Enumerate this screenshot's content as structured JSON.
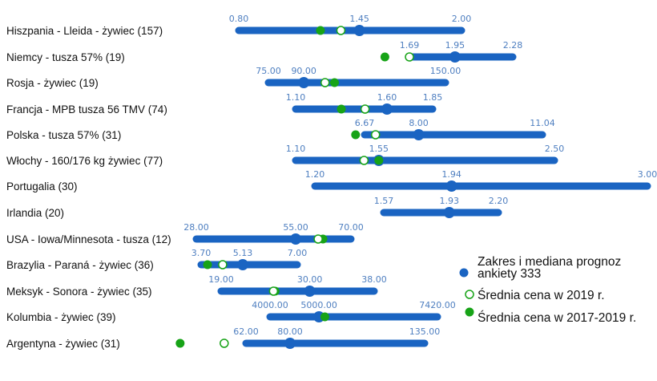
{
  "chart_data": {
    "type": "range-dot",
    "grid": false,
    "legend_position": "right",
    "colors": {
      "range": "#1a64c2",
      "mean_2019": "#17a317",
      "mean_2017_2019": "#17a317"
    },
    "legend": [
      {
        "key": "range",
        "label": "Zakres i mediana prognoz ankiety 333",
        "lines": [
          "Zakres i mediana prognoz",
          "ankiety 333"
        ]
      },
      {
        "key": "mean_2019",
        "label": "Średnia cena w 2019 r."
      },
      {
        "key": "mean_2017_2019",
        "label": "Średnia cena w 2017-2019 r."
      }
    ],
    "rows": [
      {
        "label": "Hiszpania - Lleida - żywiec (157)",
        "min": 0.8,
        "median": 1.45,
        "max": 2.0,
        "min_label": "0.80",
        "median_label": "1.45",
        "max_label": "2.00",
        "mean_2019": 1.35,
        "mean_2017_2019": 1.24
      },
      {
        "label": "Niemcy - tusza 57% (19)",
        "min": 1.69,
        "median": 1.95,
        "max": 2.28,
        "min_label": "1.69",
        "median_label": "1.95",
        "max_label": "2.28",
        "mean_2019": 1.69,
        "mean_2017_2019": 1.55
      },
      {
        "label": "Rosja -  żywiec (19)",
        "min": 75.0,
        "median": 90.0,
        "max": 150.0,
        "min_label": "75.00",
        "median_label": "90.00",
        "max_label": "150.00",
        "mean_2019": 99.0,
        "mean_2017_2019": 103.0
      },
      {
        "label": "Francja - MPB tusza 56 TMV (74)",
        "min": 1.1,
        "median": 1.6,
        "max": 1.85,
        "min_label": "1.10",
        "median_label": "1.60",
        "max_label": "1.85",
        "mean_2019": 1.48,
        "mean_2017_2019": 1.35
      },
      {
        "label": "Polska - tusza 57% (31)",
        "min": 6.67,
        "median": 8.0,
        "max": 11.04,
        "min_label": "6.67",
        "median_label": "8.00",
        "max_label": "11.04",
        "mean_2019": 6.94,
        "mean_2017_2019": 6.45
      },
      {
        "label": "Włochy - 160/176 kg żywiec (77)",
        "min": 1.1,
        "median": 1.55,
        "max": 2.5,
        "min_label": "1.10",
        "median_label": "1.55",
        "max_label": "2.50",
        "mean_2019": 1.47,
        "mean_2017_2019": 1.55
      },
      {
        "label": "Portugalia (30)",
        "min": 1.2,
        "median": 1.94,
        "max": 3.0,
        "min_label": "1.20",
        "median_label": "1.94",
        "max_label": "3.00",
        "mean_2019": null,
        "mean_2017_2019": null
      },
      {
        "label": "Irlandia (20)",
        "min": 1.57,
        "median": 1.93,
        "max": 2.2,
        "min_label": "1.57",
        "median_label": "1.93",
        "max_label": "2.20",
        "mean_2019": null,
        "mean_2017_2019": null
      },
      {
        "label": "USA - Iowa/Minnesota - tusza (12)",
        "min": 28.0,
        "median": 55.0,
        "max": 70.0,
        "min_label": "28.00",
        "median_label": "55.00",
        "max_label": "70.00",
        "mean_2019": 61.1,
        "mean_2017_2019": 62.4
      },
      {
        "label": "Brazylia - Paraná - żywiec (36)",
        "min": 3.7,
        "median": 5.13,
        "max": 7.0,
        "min_label": "3.70",
        "median_label": "5.13",
        "max_label": "7.00",
        "mean_2019": 4.44,
        "mean_2017_2019": 3.92
      },
      {
        "label": "Meksyk - Sonora - żywiec (35)",
        "min": 19.0,
        "median": 30.0,
        "max": 38.0,
        "min_label": "19.00",
        "median_label": "30.00",
        "max_label": "38.00",
        "mean_2019": 25.5,
        "mean_2017_2019": 25.7
      },
      {
        "label": "Kolumbia - żywiec (39)",
        "min": 4000.0,
        "median": 5000.0,
        "max": 7420.0,
        "min_label": "4000.00",
        "median_label": "5000.00",
        "max_label": "7420.00",
        "mean_2019": null,
        "mean_2017_2019": 5120
      },
      {
        "label": "Argentyna - żywiec (31)",
        "min": 62.0,
        "median": 80.0,
        "max": 135.0,
        "min_label": "62.00",
        "median_label": "80.00",
        "max_label": "135.00",
        "mean_2019": 53.1,
        "mean_2017_2019": 35.1
      }
    ]
  }
}
